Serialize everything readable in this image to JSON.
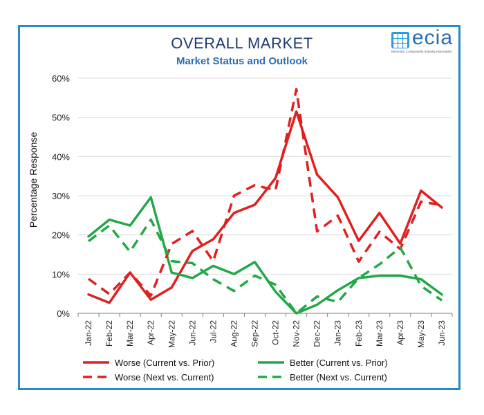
{
  "chart_data": {
    "type": "line",
    "title": "OVERALL MARKET",
    "subtitle": "Market Status and Outlook",
    "ylabel": "Percentage Response",
    "xlabel": "",
    "ylim": [
      0,
      60
    ],
    "yticks": [
      "0%",
      "10%",
      "20%",
      "30%",
      "40%",
      "50%",
      "60%"
    ],
    "grid": true,
    "legend_position": "bottom",
    "categories": [
      "Jan-22",
      "Feb-22",
      "Mar-22",
      "Apr-22",
      "May-22",
      "Jun-22",
      "Jul-22",
      "Aug-22",
      "Sep-22",
      "Oct-22",
      "Nov-22",
      "Dec-22",
      "Jan-23",
      "Feb-23",
      "Mar-23",
      "Apr-23",
      "May-23",
      "Jun-23"
    ],
    "series": [
      {
        "name": "Worse (Current vs. Prior)",
        "color": "#e02020",
        "style": "solid",
        "values": [
          4.8,
          2.7,
          10.4,
          3.5,
          6.6,
          15.9,
          18.9,
          25.6,
          27.7,
          34.5,
          51.5,
          35.4,
          29.6,
          18.5,
          25.6,
          17.8,
          31.3,
          27.0
        ]
      },
      {
        "name": "Better (Current vs. Prior)",
        "color": "#22a848",
        "style": "solid",
        "values": [
          19.6,
          23.9,
          22.4,
          29.6,
          10.4,
          9.0,
          12.1,
          10.0,
          13.1,
          5.5,
          0.0,
          2.2,
          5.9,
          9.0,
          9.6,
          9.6,
          8.7,
          4.8
        ]
      },
      {
        "name": "Worse (Next vs. Current)",
        "color": "#e02020",
        "style": "dashed",
        "values": [
          8.8,
          4.9,
          10.4,
          4.5,
          17.7,
          21.0,
          13.3,
          30.0,
          32.7,
          31.4,
          57.2,
          20.9,
          24.9,
          13.2,
          20.8,
          16.4,
          28.5,
          27.6
        ]
      },
      {
        "name": "Better (Next vs. Current)",
        "color": "#22a848",
        "style": "dashed",
        "values": [
          18.4,
          22.4,
          15.7,
          23.9,
          13.3,
          12.8,
          8.7,
          5.7,
          9.6,
          7.3,
          0.0,
          4.3,
          2.9,
          9.0,
          12.5,
          16.8,
          7.0,
          3.3
        ]
      }
    ]
  },
  "logo": {
    "word": "ecia",
    "tagline": "Electronic Components Industry Association",
    "color": "#2a6db5"
  }
}
